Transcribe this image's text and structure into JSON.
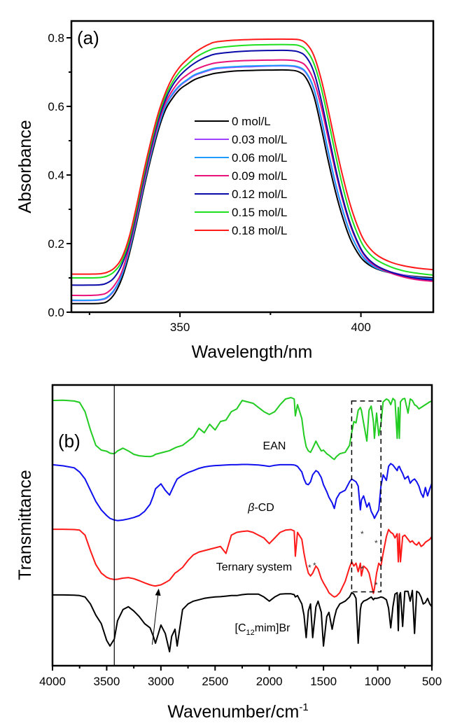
{
  "chart_data": [
    {
      "panel": "(a)",
      "type": "line",
      "title": "",
      "xlabel": "Wavelength/nm",
      "ylabel": "Absorbance",
      "xlim": [
        320,
        420
      ],
      "ylim": [
        0.0,
        0.85
      ],
      "xticks": [
        350,
        400
      ],
      "xticks_minor": [
        325,
        375
      ],
      "yticks": [
        0.0,
        0.2,
        0.4,
        0.6,
        0.8
      ],
      "yticks_minor": [
        0.1,
        0.3,
        0.5,
        0.7
      ],
      "ytick_labels": [
        "0.0",
        "0.2",
        "0.4",
        "0.6",
        "0.8"
      ],
      "xtick_labels": [
        "350",
        "400"
      ],
      "grid": false,
      "legend_position": "center",
      "x": [
        320,
        325,
        328,
        330,
        332,
        334,
        336,
        338,
        340,
        342,
        344,
        346,
        348,
        350,
        352,
        354,
        356,
        358,
        360,
        365,
        370,
        375,
        380,
        383,
        385,
        387,
        389,
        391,
        393,
        395,
        397,
        399,
        401,
        404,
        408,
        412,
        416,
        420
      ],
      "series": [
        {
          "name": "0 mol/L",
          "color": "#000000",
          "values": [
            0.025,
            0.025,
            0.026,
            0.032,
            0.055,
            0.1,
            0.17,
            0.26,
            0.36,
            0.45,
            0.53,
            0.59,
            0.625,
            0.65,
            0.665,
            0.678,
            0.686,
            0.692,
            0.697,
            0.703,
            0.705,
            0.706,
            0.706,
            0.7,
            0.68,
            0.63,
            0.54,
            0.44,
            0.35,
            0.275,
            0.215,
            0.175,
            0.148,
            0.128,
            0.115,
            0.108,
            0.103,
            0.1
          ]
        },
        {
          "name": "0.03 mol/L",
          "color": "#a040ff",
          "values": [
            0.034,
            0.034,
            0.036,
            0.043,
            0.066,
            0.11,
            0.18,
            0.27,
            0.37,
            0.46,
            0.54,
            0.6,
            0.635,
            0.66,
            0.676,
            0.69,
            0.698,
            0.705,
            0.71,
            0.714,
            0.716,
            0.718,
            0.718,
            0.712,
            0.695,
            0.65,
            0.565,
            0.465,
            0.372,
            0.295,
            0.232,
            0.188,
            0.157,
            0.133,
            0.118,
            0.108,
            0.101,
            0.097
          ]
        },
        {
          "name": "0.06 mol/L",
          "color": "#1e9bff",
          "values": [
            0.035,
            0.035,
            0.037,
            0.045,
            0.068,
            0.11,
            0.18,
            0.27,
            0.37,
            0.46,
            0.54,
            0.6,
            0.638,
            0.662,
            0.678,
            0.692,
            0.7,
            0.707,
            0.712,
            0.716,
            0.718,
            0.719,
            0.719,
            0.714,
            0.697,
            0.652,
            0.568,
            0.468,
            0.375,
            0.297,
            0.233,
            0.188,
            0.155,
            0.13,
            0.115,
            0.106,
            0.1,
            0.097
          ]
        },
        {
          "name": "0.09 mol/L",
          "color": "#e8127a",
          "values": [
            0.049,
            0.049,
            0.051,
            0.058,
            0.08,
            0.12,
            0.19,
            0.28,
            0.38,
            0.47,
            0.55,
            0.61,
            0.648,
            0.675,
            0.692,
            0.706,
            0.715,
            0.722,
            0.727,
            0.732,
            0.734,
            0.735,
            0.735,
            0.73,
            0.715,
            0.675,
            0.6,
            0.505,
            0.41,
            0.325,
            0.255,
            0.203,
            0.165,
            0.135,
            0.115,
            0.102,
            0.094,
            0.09
          ]
        },
        {
          "name": "0.12 mol/L",
          "color": "#0a0aa8",
          "values": [
            0.079,
            0.079,
            0.08,
            0.086,
            0.103,
            0.14,
            0.2,
            0.29,
            0.39,
            0.48,
            0.56,
            0.62,
            0.662,
            0.69,
            0.71,
            0.726,
            0.738,
            0.747,
            0.753,
            0.759,
            0.762,
            0.763,
            0.763,
            0.758,
            0.742,
            0.7,
            0.62,
            0.52,
            0.42,
            0.332,
            0.26,
            0.207,
            0.168,
            0.138,
            0.118,
            0.106,
            0.098,
            0.094
          ]
        },
        {
          "name": "0.15 mol/L",
          "color": "#1ee01e",
          "values": [
            0.1,
            0.1,
            0.101,
            0.106,
            0.12,
            0.15,
            0.21,
            0.3,
            0.4,
            0.49,
            0.57,
            0.63,
            0.672,
            0.702,
            0.722,
            0.74,
            0.753,
            0.763,
            0.77,
            0.776,
            0.779,
            0.78,
            0.78,
            0.777,
            0.762,
            0.725,
            0.655,
            0.56,
            0.458,
            0.365,
            0.288,
            0.23,
            0.188,
            0.155,
            0.133,
            0.12,
            0.113,
            0.108
          ]
        },
        {
          "name": "0.18 mol/L",
          "color": "#ff1a1a",
          "values": [
            0.111,
            0.111,
            0.112,
            0.117,
            0.13,
            0.16,
            0.22,
            0.31,
            0.41,
            0.5,
            0.58,
            0.64,
            0.685,
            0.716,
            0.737,
            0.756,
            0.77,
            0.781,
            0.788,
            0.793,
            0.795,
            0.796,
            0.796,
            0.794,
            0.782,
            0.748,
            0.68,
            0.588,
            0.488,
            0.395,
            0.315,
            0.253,
            0.207,
            0.17,
            0.147,
            0.135,
            0.128,
            0.124
          ]
        }
      ]
    },
    {
      "panel": "(b)",
      "type": "line",
      "title": "",
      "xlabel": "Wavenumber/cm",
      "xlabel_superscript": "-1",
      "ylabel": "Transmittance",
      "xlim": [
        4000,
        500
      ],
      "y_units": "arbitrary (0 = bottom of frame, 100 = top), stacked offsets",
      "ylim": [
        0,
        100
      ],
      "xticks": [
        4000,
        3500,
        3000,
        2500,
        2000,
        1500,
        1000,
        500
      ],
      "xtick_labels": [
        "4000",
        "3500",
        "3000",
        "2500",
        "2000",
        "1500",
        "1000",
        "500"
      ],
      "xticks_minor": [
        3750,
        3250,
        2750,
        2250,
        1750,
        1250,
        750
      ],
      "grid": false,
      "reference_line_x": 3430,
      "dashed_box": {
        "x_from": 1240,
        "x_to": 970,
        "y_from": 26.3,
        "y_to": 94.3
      },
      "arrow": {
        "from": [
          3080,
          7.5
        ],
        "to": [
          3020,
          27.5
        ]
      },
      "x": [
        4000,
        3900,
        3800,
        3750,
        3700,
        3650,
        3600,
        3550,
        3500,
        3470,
        3430,
        3400,
        3350,
        3300,
        3250,
        3200,
        3150,
        3100,
        3070,
        3050,
        3000,
        2960,
        2920,
        2900,
        2870,
        2850,
        2800,
        2750,
        2700,
        2650,
        2600,
        2550,
        2500,
        2450,
        2400,
        2350,
        2300,
        2250,
        2200,
        2150,
        2100,
        2050,
        2000,
        1950,
        1900,
        1850,
        1800,
        1770,
        1760,
        1740,
        1700,
        1680,
        1660,
        1640,
        1620,
        1600,
        1570,
        1550,
        1520,
        1500,
        1470,
        1450,
        1420,
        1400,
        1380,
        1350,
        1300,
        1260,
        1240,
        1220,
        1200,
        1180,
        1160,
        1150,
        1130,
        1100,
        1080,
        1060,
        1040,
        1030,
        1010,
        990,
        970,
        950,
        920,
        900,
        880,
        860,
        840,
        820,
        810,
        800,
        790,
        770,
        750,
        720,
        700,
        680,
        660,
        640,
        620,
        600,
        580,
        560,
        540,
        520,
        500
      ],
      "series": [
        {
          "name": "EAN",
          "label": "EAN",
          "color": "#22cc22",
          "values": [
            94.5,
            94.6,
            94.3,
            93.8,
            90.5,
            84.0,
            78.5,
            76.8,
            76.4,
            75.7,
            75.5,
            76.5,
            77.5,
            76.5,
            75.3,
            74.8,
            74.6,
            74.5,
            74.8,
            75.3,
            75.8,
            76.2,
            76.6,
            77.0,
            77.6,
            77.9,
            78.5,
            80.0,
            81.5,
            84.6,
            83.0,
            86.0,
            84.0,
            87.0,
            87.5,
            90.5,
            91.5,
            94.5,
            94.0,
            93.5,
            92.0,
            90.5,
            89.5,
            90.5,
            93.0,
            95.0,
            95.5,
            95.0,
            89.0,
            93.0,
            88.0,
            82.0,
            78.0,
            76.5,
            76.0,
            77.5,
            80.0,
            78.5,
            76.5,
            76.8,
            75.5,
            75.0,
            74.0,
            73.5,
            74.5,
            75.5,
            76.0,
            78.5,
            83.0,
            87.0,
            86.5,
            91.0,
            92.0,
            91.0,
            86.5,
            80.0,
            91.0,
            92.5,
            87.0,
            81.0,
            90.0,
            82.0,
            86.0,
            94.0,
            95.0,
            94.6,
            93.0,
            95.2,
            94.5,
            81.0,
            92.0,
            81.0,
            94.0,
            95.0,
            95.2,
            90.0,
            95.0,
            94.5,
            93.0,
            92.5,
            91.5,
            92.0,
            92.5,
            93.0,
            93.5,
            94.0,
            94.3
          ]
        },
        {
          "name": "β-CD",
          "label": "β-CD",
          "color": "#1010ee",
          "values": [
            71.6,
            71.2,
            70.5,
            69.0,
            66.5,
            62.5,
            58.5,
            55.5,
            53.5,
            52.5,
            51.9,
            51.7,
            51.9,
            52.3,
            52.8,
            53.5,
            55.0,
            57.5,
            60.5,
            63.0,
            64.8,
            62.5,
            60.8,
            62.5,
            65.0,
            66.5,
            67.8,
            68.8,
            69.5,
            70.3,
            70.8,
            71.1,
            71.3,
            71.4,
            71.5,
            71.6,
            71.6,
            71.7,
            71.7,
            71.6,
            71.5,
            71.3,
            71.0,
            71.4,
            71.6,
            71.6,
            71.6,
            71.5,
            71.4,
            71.0,
            69.0,
            66.5,
            64.8,
            64.5,
            65.5,
            68.0,
            69.5,
            69.0,
            67.0,
            64.5,
            62.0,
            60.0,
            58.0,
            56.0,
            59.5,
            61.5,
            62.5,
            65.5,
            66.5,
            66.0,
            65.5,
            64.0,
            55.5,
            59.0,
            60.5,
            56.5,
            58.0,
            55.0,
            53.5,
            52.5,
            54.0,
            55.5,
            64.0,
            68.0,
            66.0,
            71.0,
            72.0,
            71.5,
            70.5,
            69.5,
            70.8,
            71.0,
            70.0,
            68.5,
            66.5,
            67.5,
            65.0,
            66.0,
            66.5,
            65.5,
            64.0,
            61.5,
            60.0,
            63.5,
            60.5,
            63.0,
            65.0
          ]
        },
        {
          "name": "Ternary system",
          "label": "Ternary system",
          "color": "#ff1a1a",
          "values": [
            48.6,
            48.6,
            48.5,
            48.3,
            46.5,
            41.0,
            36.0,
            33.0,
            31.5,
            31.0,
            30.7,
            30.8,
            31.2,
            31.4,
            31.0,
            30.3,
            29.5,
            28.8,
            28.5,
            28.4,
            28.8,
            29.6,
            30.5,
            31.5,
            33.0,
            33.5,
            35.0,
            37.5,
            39.5,
            40.5,
            41.0,
            41.5,
            42.0,
            42.5,
            40.0,
            46.5,
            47.5,
            47.8,
            48.0,
            47.5,
            46.5,
            45.5,
            43.5,
            45.5,
            47.5,
            48.3,
            48.5,
            48.0,
            39.0,
            47.5,
            45.0,
            40.0,
            36.0,
            33.0,
            32.0,
            33.0,
            35.5,
            34.5,
            31.0,
            29.5,
            27.5,
            26.0,
            25.0,
            24.5,
            24.8,
            26.0,
            30.0,
            35.0,
            37.0,
            35.5,
            36.5,
            33.5,
            36.5,
            32.0,
            35.5,
            34.5,
            33.0,
            29.5,
            25.8,
            27.5,
            33.0,
            36.5,
            35.5,
            40.0,
            46.0,
            48.5,
            47.5,
            47.0,
            45.5,
            47.0,
            37.0,
            47.0,
            37.0,
            46.0,
            46.5,
            45.0,
            44.0,
            44.5,
            43.5,
            43.0,
            44.0,
            42.5,
            43.0,
            44.0,
            44.5,
            45.0,
            46.0
          ]
        },
        {
          "name": "[C12mim]Br",
          "label_prefix": "[C",
          "label_sub": "12",
          "label_suffix": "mim]Br",
          "color": "#000000",
          "values": [
            25.2,
            25.2,
            25.1,
            25.0,
            24.5,
            22.0,
            18.0,
            15.0,
            9.0,
            7.0,
            9.5,
            16.0,
            20.0,
            21.0,
            19.5,
            17.5,
            15.0,
            13.5,
            10.5,
            8.0,
            14.5,
            11.5,
            5.0,
            10.5,
            13.0,
            7.0,
            20.0,
            22.0,
            23.0,
            23.5,
            24.0,
            24.3,
            24.5,
            24.6,
            24.8,
            25.0,
            25.0,
            25.3,
            25.5,
            25.5,
            25.5,
            24.5,
            23.0,
            24.5,
            25.5,
            25.6,
            25.6,
            25.3,
            24.5,
            25.0,
            22.0,
            18.0,
            10.0,
            19.5,
            22.0,
            10.0,
            21.0,
            23.0,
            19.0,
            7.0,
            17.5,
            19.0,
            13.0,
            17.0,
            20.0,
            22.0,
            23.0,
            24.5,
            26.0,
            25.5,
            24.0,
            8.0,
            20.0,
            22.0,
            23.0,
            23.5,
            24.0,
            24.5,
            23.5,
            24.0,
            24.0,
            24.2,
            24.5,
            24.3,
            23.5,
            20.5,
            13.5,
            21.0,
            25.5,
            26.0,
            12.5,
            25.0,
            26.0,
            14.0,
            26.5,
            26.5,
            23.0,
            26.8,
            11.5,
            26.5,
            26.0,
            24.5,
            22.0,
            22.5,
            24.0,
            22.0,
            21.0
          ]
        }
      ]
    }
  ],
  "panel_a": {
    "label": "(a)",
    "xlabel": "Wavelength/nm",
    "ylabel": "Absorbance"
  },
  "panel_b": {
    "label": "(b)",
    "xlabel": "Wavenumber/cm",
    "xlabel_sup": "-1",
    "ylabel": "Transmittance",
    "labels": {
      "ean": "EAN",
      "bcd_beta": "β",
      "bcd_rest": "-CD",
      "ternary": "Ternary system",
      "c12_pre": "[C",
      "c12_sub": "12",
      "c12_post": "mim]Br"
    },
    "star": "*"
  }
}
